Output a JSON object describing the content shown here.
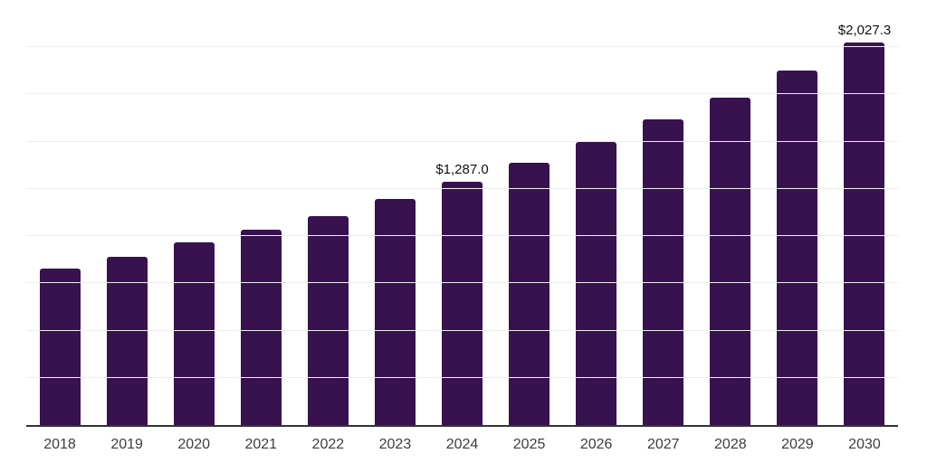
{
  "chart_data": {
    "type": "bar",
    "title": "",
    "xlabel": "",
    "ylabel": "",
    "categories": [
      "2018",
      "2019",
      "2020",
      "2021",
      "2022",
      "2023",
      "2024",
      "2025",
      "2026",
      "2027",
      "2028",
      "2029",
      "2030"
    ],
    "values": [
      828,
      889,
      965,
      1032,
      1104,
      1195,
      1287.0,
      1388,
      1498,
      1618,
      1735,
      1879,
      2027.3
    ],
    "value_labels": [
      "",
      "",
      "",
      "",
      "",
      "",
      "$1,287.0",
      "",
      "",
      "",
      "",
      "",
      "$2,027.3"
    ],
    "ylim": [
      0,
      2250
    ],
    "grid_step": 250,
    "grid": true,
    "legend_position": "none",
    "y_axis_tick_labels": "none",
    "colors": {
      "bar": "#38124f",
      "gridline": "#ededed",
      "axis_line": "#333333",
      "tick_text": "#3d3d3d",
      "value_label_text": "#111111",
      "background": "#ffffff"
    }
  }
}
